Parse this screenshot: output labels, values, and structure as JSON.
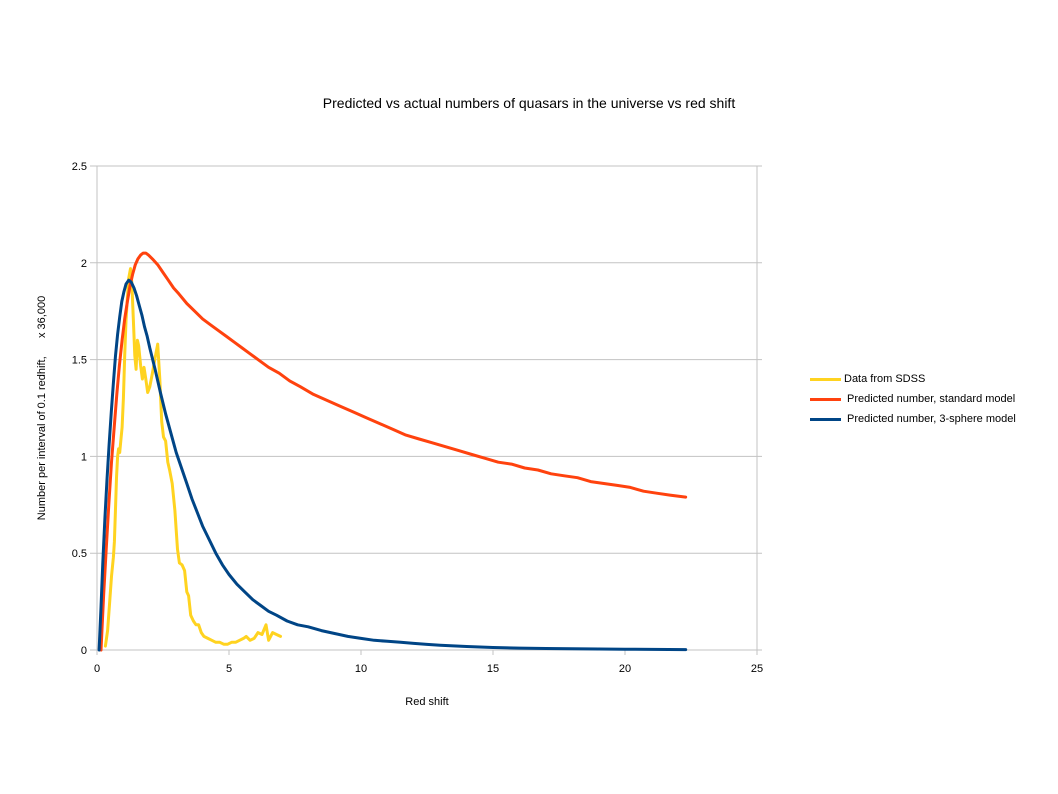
{
  "title": "Predicted vs actual numbers of quasars in the universe vs red shift",
  "axes": {
    "x": {
      "title": "Red shift",
      "min": 0,
      "max": 25,
      "ticks": [
        0,
        5,
        10,
        15,
        20,
        25
      ]
    },
    "y": {
      "title": "Number per interval of 0.1 redhift,      x 36,000",
      "min": 0,
      "max": 2.5,
      "ticks": [
        0,
        0.5,
        1,
        1.5,
        2,
        2.5
      ]
    }
  },
  "legend": {
    "position": "right",
    "items": [
      {
        "label": "Data from SDSS",
        "color": "#FFD320"
      },
      {
        "label": " Predicted number, standard model",
        "color": "#FF420E"
      },
      {
        "label": " Predicted number, 3-sphere model",
        "color": "#004586"
      }
    ]
  },
  "colors": {
    "background": "#FFFFFF",
    "gridline": "#C3C3C3",
    "text": "#000000",
    "series_sdss": "#FFD320",
    "series_standard": "#FF420E",
    "series_3sphere": "#004586"
  },
  "chart_data": {
    "type": "line",
    "title": "Predicted vs actual numbers of quasars in the universe vs red shift",
    "xlabel": "Red shift",
    "ylabel": "Number per interval of 0.1 redhift,      x 36,000",
    "xlim": [
      0,
      25
    ],
    "ylim": [
      0,
      2.5
    ],
    "grid": "horizontal-only",
    "legend_position": "right",
    "line_width": 3,
    "series": [
      {
        "name": "Data from SDSS",
        "color": "#FFD320",
        "points": [
          [
            0.32,
            0.02
          ],
          [
            0.4,
            0.1
          ],
          [
            0.48,
            0.25
          ],
          [
            0.55,
            0.38
          ],
          [
            0.62,
            0.48
          ],
          [
            0.66,
            0.56
          ],
          [
            0.7,
            0.73
          ],
          [
            0.74,
            0.89
          ],
          [
            0.78,
            1.0
          ],
          [
            0.82,
            1.04
          ],
          [
            0.86,
            1.02
          ],
          [
            0.9,
            1.08
          ],
          [
            0.95,
            1.15
          ],
          [
            1.0,
            1.3
          ],
          [
            1.05,
            1.52
          ],
          [
            1.1,
            1.7
          ],
          [
            1.15,
            1.82
          ],
          [
            1.2,
            1.92
          ],
          [
            1.27,
            1.97
          ],
          [
            1.32,
            1.9
          ],
          [
            1.38,
            1.7
          ],
          [
            1.43,
            1.52
          ],
          [
            1.48,
            1.45
          ],
          [
            1.53,
            1.6
          ],
          [
            1.58,
            1.57
          ],
          [
            1.65,
            1.47
          ],
          [
            1.72,
            1.4
          ],
          [
            1.78,
            1.46
          ],
          [
            1.85,
            1.4
          ],
          [
            1.92,
            1.33
          ],
          [
            2.0,
            1.36
          ],
          [
            2.1,
            1.43
          ],
          [
            2.2,
            1.51
          ],
          [
            2.3,
            1.58
          ],
          [
            2.38,
            1.4
          ],
          [
            2.45,
            1.18
          ],
          [
            2.52,
            1.1
          ],
          [
            2.6,
            1.08
          ],
          [
            2.68,
            0.97
          ],
          [
            2.75,
            0.93
          ],
          [
            2.85,
            0.86
          ],
          [
            2.95,
            0.72
          ],
          [
            3.05,
            0.52
          ],
          [
            3.12,
            0.45
          ],
          [
            3.22,
            0.44
          ],
          [
            3.32,
            0.41
          ],
          [
            3.4,
            0.3
          ],
          [
            3.47,
            0.28
          ],
          [
            3.55,
            0.18
          ],
          [
            3.65,
            0.15
          ],
          [
            3.75,
            0.13
          ],
          [
            3.85,
            0.13
          ],
          [
            3.95,
            0.09
          ],
          [
            4.05,
            0.07
          ],
          [
            4.2,
            0.06
          ],
          [
            4.35,
            0.05
          ],
          [
            4.5,
            0.04
          ],
          [
            4.65,
            0.04
          ],
          [
            4.8,
            0.03
          ],
          [
            4.95,
            0.03
          ],
          [
            5.1,
            0.04
          ],
          [
            5.25,
            0.04
          ],
          [
            5.4,
            0.05
          ],
          [
            5.55,
            0.06
          ],
          [
            5.65,
            0.07
          ],
          [
            5.8,
            0.05
          ],
          [
            5.95,
            0.06
          ],
          [
            6.1,
            0.09
          ],
          [
            6.25,
            0.08
          ],
          [
            6.4,
            0.13
          ],
          [
            6.5,
            0.05
          ],
          [
            6.65,
            0.09
          ],
          [
            6.8,
            0.08
          ],
          [
            6.95,
            0.07
          ]
        ]
      },
      {
        "name": "Predicted number, standard model",
        "color": "#FF420E",
        "points": [
          [
            0.15,
            0.0
          ],
          [
            0.25,
            0.28
          ],
          [
            0.35,
            0.52
          ],
          [
            0.45,
            0.76
          ],
          [
            0.55,
            0.97
          ],
          [
            0.65,
            1.15
          ],
          [
            0.75,
            1.32
          ],
          [
            0.85,
            1.47
          ],
          [
            0.95,
            1.6
          ],
          [
            1.05,
            1.71
          ],
          [
            1.15,
            1.8
          ],
          [
            1.25,
            1.88
          ],
          [
            1.35,
            1.94
          ],
          [
            1.45,
            1.99
          ],
          [
            1.55,
            2.02
          ],
          [
            1.65,
            2.04
          ],
          [
            1.75,
            2.05
          ],
          [
            1.85,
            2.05
          ],
          [
            1.95,
            2.04
          ],
          [
            2.1,
            2.02
          ],
          [
            2.3,
            1.99
          ],
          [
            2.5,
            1.95
          ],
          [
            2.7,
            1.91
          ],
          [
            2.9,
            1.87
          ],
          [
            3.1,
            1.84
          ],
          [
            3.4,
            1.79
          ],
          [
            3.7,
            1.75
          ],
          [
            4.0,
            1.71
          ],
          [
            4.3,
            1.68
          ],
          [
            4.6,
            1.65
          ],
          [
            4.9,
            1.62
          ],
          [
            5.2,
            1.59
          ],
          [
            5.5,
            1.56
          ],
          [
            5.8,
            1.53
          ],
          [
            6.1,
            1.5
          ],
          [
            6.5,
            1.46
          ],
          [
            6.9,
            1.43
          ],
          [
            7.3,
            1.39
          ],
          [
            7.7,
            1.36
          ],
          [
            8.2,
            1.32
          ],
          [
            8.7,
            1.29
          ],
          [
            9.2,
            1.26
          ],
          [
            9.7,
            1.23
          ],
          [
            10.2,
            1.2
          ],
          [
            10.7,
            1.17
          ],
          [
            11.2,
            1.14
          ],
          [
            11.7,
            1.11
          ],
          [
            12.2,
            1.09
          ],
          [
            12.7,
            1.07
          ],
          [
            13.2,
            1.05
          ],
          [
            13.7,
            1.03
          ],
          [
            14.2,
            1.01
          ],
          [
            14.7,
            0.99
          ],
          [
            15.2,
            0.97
          ],
          [
            15.7,
            0.96
          ],
          [
            16.2,
            0.94
          ],
          [
            16.7,
            0.93
          ],
          [
            17.2,
            0.91
          ],
          [
            17.7,
            0.9
          ],
          [
            18.2,
            0.89
          ],
          [
            18.7,
            0.87
          ],
          [
            19.2,
            0.86
          ],
          [
            19.7,
            0.85
          ],
          [
            20.2,
            0.84
          ],
          [
            20.7,
            0.82
          ],
          [
            21.2,
            0.81
          ],
          [
            21.7,
            0.8
          ],
          [
            22.3,
            0.79
          ]
        ]
      },
      {
        "name": "Predicted number, 3-sphere model",
        "color": "#004586",
        "points": [
          [
            0.08,
            0.0
          ],
          [
            0.15,
            0.22
          ],
          [
            0.22,
            0.45
          ],
          [
            0.3,
            0.68
          ],
          [
            0.38,
            0.88
          ],
          [
            0.46,
            1.06
          ],
          [
            0.54,
            1.23
          ],
          [
            0.62,
            1.38
          ],
          [
            0.7,
            1.52
          ],
          [
            0.78,
            1.63
          ],
          [
            0.86,
            1.72
          ],
          [
            0.94,
            1.8
          ],
          [
            1.02,
            1.85
          ],
          [
            1.1,
            1.89
          ],
          [
            1.2,
            1.91
          ],
          [
            1.3,
            1.9
          ],
          [
            1.4,
            1.87
          ],
          [
            1.5,
            1.83
          ],
          [
            1.6,
            1.78
          ],
          [
            1.7,
            1.73
          ],
          [
            1.8,
            1.67
          ],
          [
            1.9,
            1.62
          ],
          [
            2.0,
            1.56
          ],
          [
            2.2,
            1.45
          ],
          [
            2.4,
            1.33
          ],
          [
            2.6,
            1.22
          ],
          [
            2.8,
            1.12
          ],
          [
            3.0,
            1.02
          ],
          [
            3.2,
            0.94
          ],
          [
            3.4,
            0.86
          ],
          [
            3.6,
            0.78
          ],
          [
            3.8,
            0.71
          ],
          [
            4.0,
            0.64
          ],
          [
            4.25,
            0.57
          ],
          [
            4.5,
            0.5
          ],
          [
            4.75,
            0.44
          ],
          [
            5.0,
            0.39
          ],
          [
            5.3,
            0.34
          ],
          [
            5.6,
            0.3
          ],
          [
            5.9,
            0.26
          ],
          [
            6.2,
            0.23
          ],
          [
            6.5,
            0.2
          ],
          [
            6.8,
            0.18
          ],
          [
            7.2,
            0.15
          ],
          [
            7.6,
            0.13
          ],
          [
            8.0,
            0.12
          ],
          [
            8.5,
            0.1
          ],
          [
            9.0,
            0.085
          ],
          [
            9.5,
            0.07
          ],
          [
            10.0,
            0.06
          ],
          [
            10.5,
            0.05
          ],
          [
            11.0,
            0.045
          ],
          [
            11.5,
            0.04
          ],
          [
            12.0,
            0.034
          ],
          [
            12.5,
            0.029
          ],
          [
            13.0,
            0.025
          ],
          [
            13.5,
            0.021
          ],
          [
            14.0,
            0.018
          ],
          [
            15.0,
            0.013
          ],
          [
            16.0,
            0.01
          ],
          [
            17.0,
            0.008
          ],
          [
            18.0,
            0.006
          ],
          [
            19.0,
            0.005
          ],
          [
            20.0,
            0.004
          ],
          [
            21.0,
            0.003
          ],
          [
            22.3,
            0.002
          ]
        ]
      }
    ]
  }
}
